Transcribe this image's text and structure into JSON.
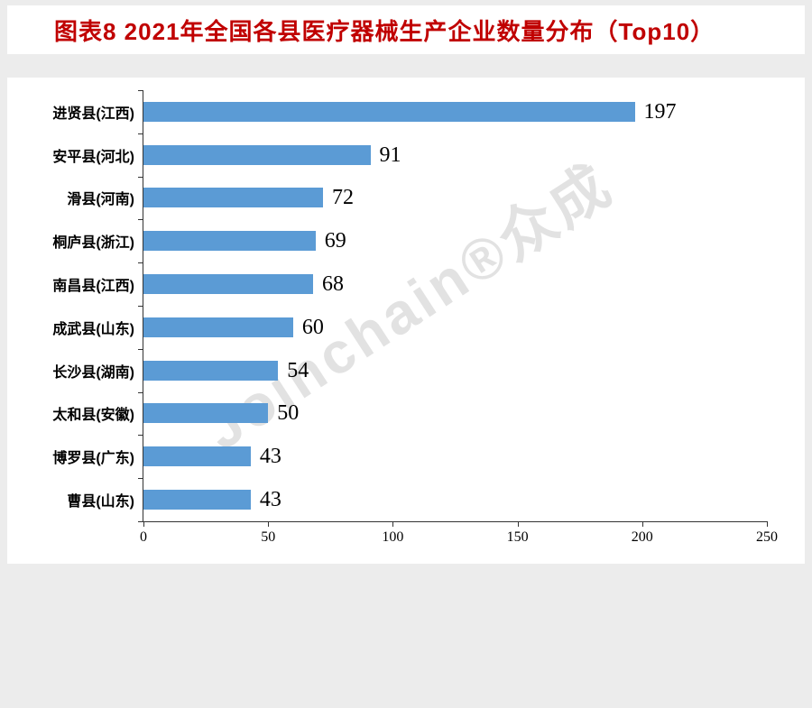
{
  "page": {
    "title": "图表8 2021年全国各县医疗器械生产企业数量分布（Top10）",
    "title_color": "#c00000",
    "watermark": "Joinchain®众成",
    "background_color": "#ececec",
    "card_color": "#ffffff"
  },
  "chart_data": {
    "type": "bar",
    "orientation": "horizontal",
    "title": "图表8 2021年全国各县医疗器械生产企业数量分布（Top10）",
    "categories": [
      "进贤县(江西)",
      "安平县(河北)",
      "滑县(河南)",
      "桐庐县(浙江)",
      "南昌县(江西)",
      "成武县(山东)",
      "长沙县(湖南)",
      "太和县(安徽)",
      "博罗县(广东)",
      "曹县(山东)"
    ],
    "values": [
      197,
      91,
      72,
      69,
      68,
      60,
      54,
      50,
      43,
      43
    ],
    "xlabel": "",
    "ylabel": "",
    "xlim": [
      0,
      250
    ],
    "x_ticks": [
      0,
      50,
      100,
      150,
      200,
      250
    ],
    "bar_color": "#5b9bd5",
    "grid": false,
    "legend": false,
    "data_labels": true
  }
}
